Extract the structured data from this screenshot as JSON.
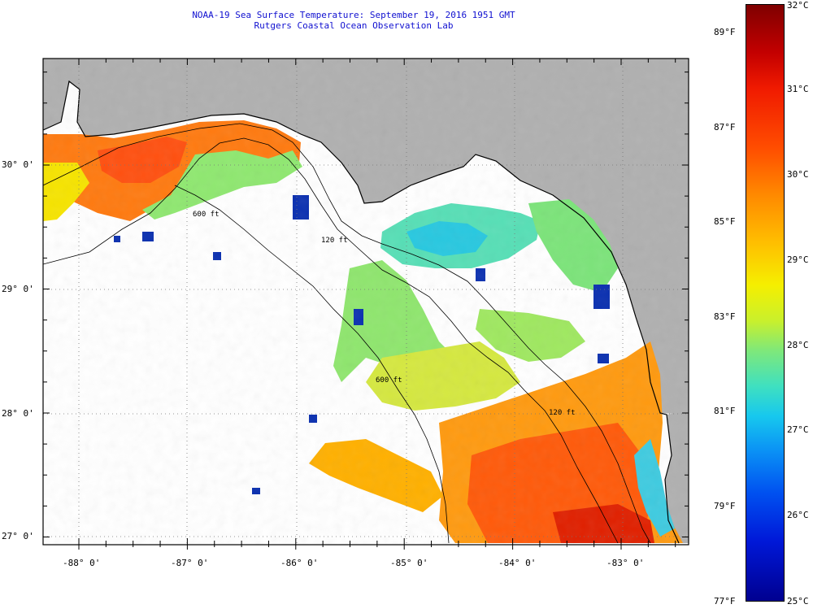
{
  "title": {
    "line1": "NOAA-19 Sea Surface Temperature:  September 19, 2016 1951 GMT",
    "line2": "Rutgers Coastal Ocean Observation Lab"
  },
  "map": {
    "latitude_labels": [
      "30° 0'",
      "29° 0'",
      "28° 0'",
      "27° 0'"
    ],
    "longitude_labels": [
      "-88° 0'",
      "-87° 0'",
      "-86° 0'",
      "-85° 0'",
      "-84° 0'",
      "-83° 0'"
    ],
    "isobath_labels": [
      "600 ft",
      "120 ft",
      "600 ft",
      "120 ft"
    ],
    "colors": {
      "land": "#b0b0b0",
      "frame": "#000000",
      "grid": "#777777"
    }
  },
  "colorbar": {
    "fahrenheit_labels": [
      "89°F",
      "87°F",
      "85°F",
      "83°F",
      "81°F",
      "79°F",
      "77°F"
    ],
    "celsius_labels": [
      "32°C",
      "31°C",
      "30°C",
      "29°C",
      "28°C",
      "27°C",
      "26°C",
      "25°C"
    ],
    "min_c": 25,
    "max_c": 32
  }
}
